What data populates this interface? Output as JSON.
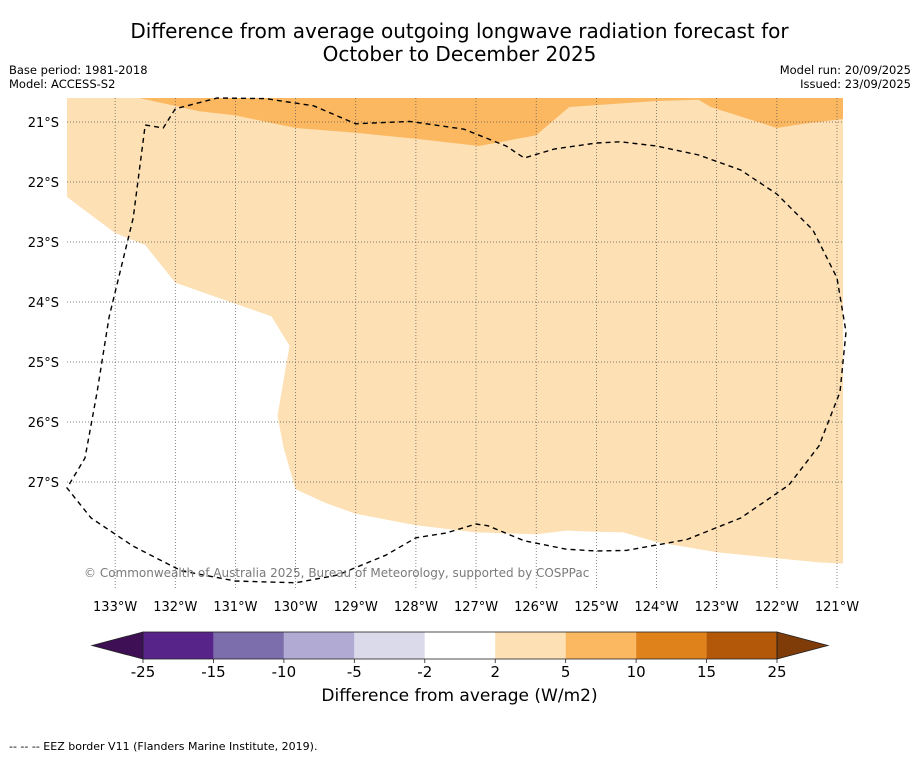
{
  "header": {
    "title_line1": "Difference from average outgoing longwave radiation forecast for",
    "title_line2": "October to December 2025",
    "base_period": "Base period: 1981-2018",
    "model": "Model: ACCESS-S2",
    "model_run": "Model run: 20/09/2025",
    "issued": "Issued: 23/09/2025"
  },
  "map": {
    "lon_range": [
      -133.8,
      -120.9
    ],
    "lat_range": [
      -28.8,
      -20.6
    ],
    "lon_ticks": [
      {
        "value": -133,
        "label": "133°W"
      },
      {
        "value": -132,
        "label": "132°W"
      },
      {
        "value": -131,
        "label": "131°W"
      },
      {
        "value": -130,
        "label": "130°W"
      },
      {
        "value": -129,
        "label": "129°W"
      },
      {
        "value": -128,
        "label": "128°W"
      },
      {
        "value": -127,
        "label": "127°W"
      },
      {
        "value": -126,
        "label": "126°W"
      },
      {
        "value": -125,
        "label": "125°W"
      },
      {
        "value": -124,
        "label": "124°W"
      },
      {
        "value": -123,
        "label": "123°W"
      },
      {
        "value": -122,
        "label": "122°W"
      },
      {
        "value": -121,
        "label": "121°W"
      }
    ],
    "lat_ticks": [
      {
        "value": -21,
        "label": "21°S"
      },
      {
        "value": -22,
        "label": "22°S"
      },
      {
        "value": -23,
        "label": "23°S"
      },
      {
        "value": -24,
        "label": "24°S"
      },
      {
        "value": -25,
        "label": "25°S"
      },
      {
        "value": -26,
        "label": "26°S"
      },
      {
        "value": -27,
        "label": "27°S"
      }
    ],
    "regions": [
      {
        "category": "2 to 5",
        "color": "#fde0b4",
        "points": [
          [
            -133.8,
            -20.6
          ],
          [
            -120.9,
            -20.6
          ],
          [
            -120.9,
            -28.36
          ],
          [
            -121.3,
            -28.34
          ],
          [
            -122.0,
            -28.27
          ],
          [
            -123.0,
            -28.17
          ],
          [
            -124.0,
            -28.0
          ],
          [
            -124.55,
            -27.84
          ],
          [
            -125.0,
            -27.83
          ],
          [
            -125.5,
            -27.81
          ],
          [
            -126.0,
            -27.87
          ],
          [
            -127.0,
            -27.84
          ],
          [
            -128.0,
            -27.72
          ],
          [
            -129.0,
            -27.53
          ],
          [
            -129.5,
            -27.35
          ],
          [
            -130.0,
            -27.12
          ],
          [
            -130.2,
            -26.43
          ],
          [
            -130.3,
            -25.9
          ],
          [
            -130.2,
            -25.3
          ],
          [
            -130.1,
            -24.73
          ],
          [
            -130.4,
            -24.24
          ],
          [
            -131.0,
            -24.03
          ],
          [
            -132.0,
            -23.68
          ],
          [
            -132.5,
            -23.05
          ],
          [
            -133.0,
            -22.85
          ],
          [
            -133.8,
            -22.25
          ]
        ]
      },
      {
        "category": "5 to 10",
        "color": "#fbb861",
        "points": [
          [
            -132.6,
            -20.6
          ],
          [
            -120.9,
            -20.6
          ],
          [
            -120.9,
            -20.95
          ],
          [
            -121.5,
            -21.02
          ],
          [
            -122.0,
            -21.1
          ],
          [
            -123.1,
            -20.75
          ],
          [
            -123.3,
            -20.63
          ],
          [
            -124.0,
            -20.65
          ],
          [
            -125.45,
            -20.75
          ],
          [
            -126.0,
            -21.22
          ],
          [
            -126.95,
            -21.4
          ],
          [
            -128.0,
            -21.28
          ],
          [
            -129.0,
            -21.18
          ],
          [
            -130.0,
            -21.1
          ],
          [
            -131.0,
            -20.89
          ],
          [
            -131.6,
            -20.82
          ]
        ]
      }
    ],
    "eez_border": [
      [
        -132.5,
        -21.05
      ],
      [
        -132.2,
        -21.1
      ],
      [
        -132.0,
        -20.78
      ],
      [
        -131.3,
        -20.6
      ],
      [
        -130.5,
        -20.61
      ],
      [
        -129.7,
        -20.73
      ],
      [
        -129.0,
        -21.03
      ],
      [
        -128.1,
        -20.99
      ],
      [
        -127.2,
        -21.12
      ],
      [
        -126.5,
        -21.4
      ],
      [
        -126.2,
        -21.6
      ],
      [
        -125.7,
        -21.45
      ],
      [
        -125.0,
        -21.35
      ],
      [
        -124.6,
        -21.33
      ],
      [
        -124.0,
        -21.4
      ],
      [
        -123.3,
        -21.55
      ],
      [
        -122.6,
        -21.8
      ],
      [
        -122.0,
        -22.2
      ],
      [
        -121.4,
        -22.8
      ],
      [
        -121.0,
        -23.6
      ],
      [
        -120.85,
        -24.5
      ],
      [
        -120.95,
        -25.5
      ],
      [
        -121.3,
        -26.4
      ],
      [
        -121.8,
        -27.05
      ],
      [
        -122.6,
        -27.6
      ],
      [
        -123.5,
        -27.96
      ],
      [
        -124.5,
        -28.14
      ],
      [
        -125.0,
        -28.15
      ],
      [
        -125.5,
        -28.12
      ],
      [
        -126.2,
        -27.98
      ],
      [
        -126.8,
        -27.73
      ],
      [
        -127.0,
        -27.7
      ],
      [
        -127.5,
        -27.85
      ],
      [
        -128.0,
        -27.93
      ],
      [
        -128.5,
        -28.22
      ],
      [
        -129.3,
        -28.55
      ],
      [
        -130.0,
        -28.68
      ],
      [
        -131.0,
        -28.65
      ],
      [
        -131.9,
        -28.48
      ],
      [
        -132.7,
        -28.07
      ],
      [
        -133.4,
        -27.6
      ],
      [
        -133.8,
        -27.1
      ],
      [
        -133.5,
        -26.6
      ],
      [
        -133.3,
        -25.5
      ],
      [
        -133.1,
        -24.25
      ],
      [
        -132.7,
        -22.6
      ],
      [
        -132.5,
        -21.05
      ]
    ]
  },
  "copyright": "© Commonwealth of Australia 2025, Bureau of Meteorology, supported by COSPPac",
  "colorbar": {
    "colors": [
      "#3f0f55",
      "#57248a",
      "#7c6eac",
      "#b1aad2",
      "#dadaeb",
      "#ffffff",
      "#fde0b4",
      "#fbb861",
      "#e0821b",
      "#b35808",
      "#7f3b08"
    ],
    "tick_labels": [
      "-25",
      "-15",
      "-10",
      "-5",
      "-2",
      "2",
      "5",
      "10",
      "15",
      "25"
    ],
    "label": "Difference from average (W/m2)"
  },
  "footnote": "--  --  -- EEZ border V11 (Flanders Marine Institute, 2019)."
}
